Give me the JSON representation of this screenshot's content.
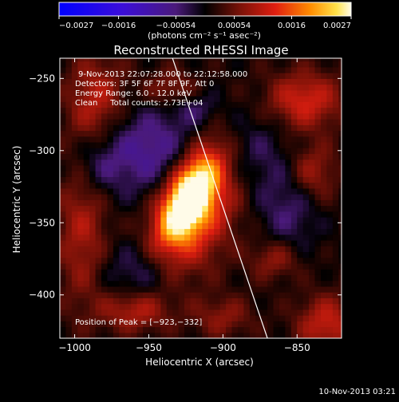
{
  "chart_data": {
    "type": "heatmap",
    "title": "Reconstructed RHESSI Image",
    "xlabel": "Heliocentric X (arcsec)",
    "ylabel": "Heliocentric Y (arcsec)",
    "xlim": [
      -1010,
      -820
    ],
    "ylim": [
      -430,
      -236
    ],
    "x_ticks": [
      -1000,
      -950,
      -900,
      -850
    ],
    "x_tick_labels": [
      "−1000",
      "−950",
      "−900",
      "−850"
    ],
    "y_ticks": [
      -250,
      -300,
      -350,
      -400
    ],
    "y_tick_labels": [
      "−250",
      "−300",
      "−350",
      "−400"
    ],
    "colorbar": {
      "min": -0.0027,
      "max": 0.0027,
      "ticks": [
        -0.0027,
        -0.0016,
        -0.00054,
        0.00054,
        0.0016,
        0.0027
      ],
      "tick_labels": [
        "−0.0027",
        "−0.0016",
        "−0.00054",
        "0.00054",
        "0.0016",
        "0.0027"
      ],
      "units_label": "(photons cm⁻² s⁻¹ asec⁻²)"
    },
    "annotations": [
      "9-Nov-2013 22:07:28.000 to 22:12:58.000",
      "Detectors: 3F 5F 6F 7F 8F 9F, Att 0",
      "Energy Range: 6.0 - 12.0 keV",
      "Clean     Total counts: 2.73E+04",
      "Position of Peak = [−923,−332]"
    ],
    "peak": [
      -923,
      -332
    ],
    "limb_line": [
      [
        -934,
        -236
      ],
      [
        -870,
        -430
      ]
    ],
    "hot_regions": [
      {
        "x": -923,
        "y": -332,
        "peak": 0.0027,
        "sx": 10,
        "sy": 22,
        "angle_deg": -25
      },
      {
        "x": -918,
        "y": -342,
        "peak": 0.0014,
        "sx": 18,
        "sy": 36,
        "angle_deg": -25
      },
      {
        "x": -845,
        "y": -265,
        "peak": 0.0011,
        "sx": 18,
        "sy": 14,
        "angle_deg": 0
      },
      {
        "x": -840,
        "y": -315,
        "peak": 0.0008,
        "sx": 12,
        "sy": 14,
        "angle_deg": 0
      },
      {
        "x": -830,
        "y": -420,
        "peak": 0.001,
        "sx": 14,
        "sy": 14,
        "angle_deg": 0
      },
      {
        "x": -985,
        "y": -265,
        "peak": 0.0009,
        "sx": 14,
        "sy": 22,
        "angle_deg": 0
      },
      {
        "x": -935,
        "y": -258,
        "peak": 0.0007,
        "sx": 12,
        "sy": 10,
        "angle_deg": 0
      },
      {
        "x": -995,
        "y": -355,
        "peak": 0.0008,
        "sx": 12,
        "sy": 38,
        "angle_deg": 0
      },
      {
        "x": -960,
        "y": -410,
        "peak": 0.0009,
        "sx": 16,
        "sy": 10,
        "angle_deg": 0
      },
      {
        "x": -900,
        "y": -415,
        "peak": 0.0006,
        "sx": 14,
        "sy": 10,
        "angle_deg": 0
      },
      {
        "x": -865,
        "y": -375,
        "peak": 0.0007,
        "sx": 12,
        "sy": 10,
        "angle_deg": 0
      }
    ],
    "cold_regions": [
      {
        "x": -950,
        "y": -300,
        "peak": -0.0009,
        "sx": 24,
        "sy": 22
      },
      {
        "x": -955,
        "y": -385,
        "peak": -0.0007,
        "sx": 18,
        "sy": 16
      },
      {
        "x": -880,
        "y": -300,
        "peak": -0.0006,
        "sx": 16,
        "sy": 22
      },
      {
        "x": -855,
        "y": -340,
        "peak": -0.0006,
        "sx": 14,
        "sy": 22
      },
      {
        "x": -985,
        "y": -310,
        "peak": -0.0005,
        "sx": 12,
        "sy": 14
      },
      {
        "x": -920,
        "y": -270,
        "peak": -0.0005,
        "sx": 12,
        "sy": 8
      }
    ]
  },
  "footer": {
    "date": "10-Nov-2013 03:21"
  }
}
